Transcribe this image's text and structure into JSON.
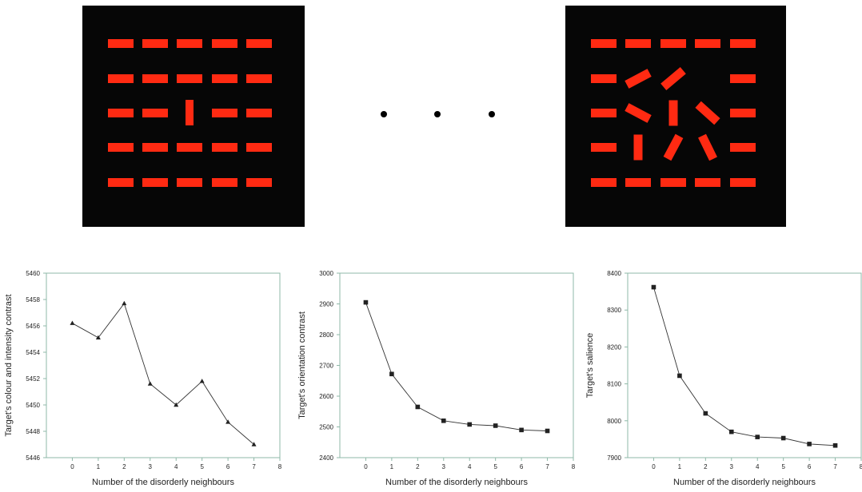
{
  "ellipsis_dots": 3,
  "colors": {
    "panel": "#060606",
    "bar": "#ff2a12",
    "axis": "#8fb8a8",
    "line": "#333333",
    "marker": "#222222"
  },
  "chart_data": [
    {
      "type": "line",
      "marker": "triangle",
      "xlabel": "Number of the disorderly neighbours",
      "ylabel": "Target's colour and intensity contrast",
      "xlim": [
        -1,
        8
      ],
      "ylim": [
        5446,
        5460
      ],
      "xticks": [
        0,
        1,
        2,
        3,
        4,
        5,
        6,
        7,
        8
      ],
      "yticks": [
        5446,
        5448,
        5450,
        5452,
        5454,
        5456,
        5458,
        5460
      ],
      "x": [
        0,
        1,
        2,
        3,
        4,
        5,
        6,
        7
      ],
      "values": [
        5456.2,
        5455.1,
        5457.7,
        5451.6,
        5450.0,
        5451.8,
        5448.7,
        5447.0
      ]
    },
    {
      "type": "line",
      "marker": "square",
      "xlabel": "Number of the disorderly neighbours",
      "ylabel": "Target's orientation contrast",
      "xlim": [
        -1,
        8
      ],
      "ylim": [
        2400,
        3000
      ],
      "xticks": [
        0,
        1,
        2,
        3,
        4,
        5,
        6,
        7,
        8
      ],
      "yticks": [
        2400,
        2500,
        2600,
        2700,
        2800,
        2900,
        3000
      ],
      "x": [
        0,
        1,
        2,
        3,
        4,
        5,
        6,
        7
      ],
      "values": [
        2905,
        2672,
        2565,
        2520,
        2508,
        2504,
        2490,
        2487
      ]
    },
    {
      "type": "line",
      "marker": "square",
      "xlabel": "Number of the disorderly neighbours",
      "ylabel": "Target's salience",
      "xlim": [
        -1,
        8
      ],
      "ylim": [
        7900,
        8400
      ],
      "xticks": [
        0,
        1,
        2,
        3,
        4,
        5,
        6,
        7,
        8
      ],
      "yticks": [
        7900,
        8000,
        8100,
        8200,
        8300,
        8400
      ],
      "x": [
        0,
        1,
        2,
        3,
        4,
        5,
        6,
        7
      ],
      "values": [
        8362,
        8122,
        8020,
        7970,
        7956,
        7953,
        7937,
        7933
      ]
    }
  ]
}
